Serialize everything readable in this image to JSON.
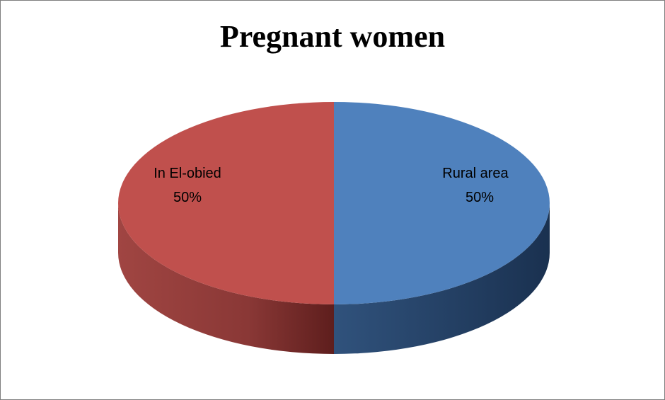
{
  "chart_data": {
    "type": "pie",
    "title": "Pregnant women",
    "slices": [
      {
        "name": "Rural area",
        "value": 50,
        "label": "50%",
        "color": "#4f81bd",
        "side_dark": "#1f3b5e",
        "side_light": "#30527c"
      },
      {
        "name": "In El-obied",
        "value": 50,
        "label": "50%",
        "color": "#c0504d",
        "side_dark": "#6b2322",
        "side_light": "#a04542"
      }
    ],
    "style": "3d-pie"
  }
}
